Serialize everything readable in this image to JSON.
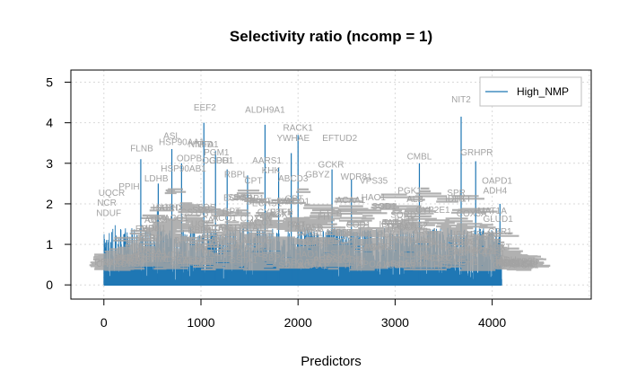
{
  "chart_data": {
    "type": "bar",
    "title": "Selectivity ratio (ncomp = 1)",
    "xlabel": "Predictors",
    "ylabel": "",
    "xlim": [
      -340,
      5020
    ],
    "ylim": [
      -0.35,
      5.3
    ],
    "xticks": [
      0,
      1000,
      2000,
      3000,
      4000
    ],
    "yticks": [
      0,
      1,
      2,
      3,
      4,
      5
    ],
    "grid": true,
    "n_predictors": 4100,
    "legend": {
      "position": "top-right",
      "entries": [
        "High_NMP"
      ]
    },
    "colors": {
      "bars": "#1f77b4",
      "labels": "#a3a3a3",
      "grid": "#d9d9d9"
    },
    "series": [
      {
        "name": "High_NMP",
        "peaks": [
          {
            "x": 380,
            "y": 3.1
          },
          {
            "x": 560,
            "y": 2.5
          },
          {
            "x": 700,
            "y": 3.35
          },
          {
            "x": 800,
            "y": 3.0
          },
          {
            "x": 1030,
            "y": 4.0
          },
          {
            "x": 1150,
            "y": 3.3
          },
          {
            "x": 1270,
            "y": 2.85
          },
          {
            "x": 1480,
            "y": 2.7
          },
          {
            "x": 1660,
            "y": 3.95
          },
          {
            "x": 1800,
            "y": 2.9
          },
          {
            "x": 1930,
            "y": 3.25
          },
          {
            "x": 2000,
            "y": 3.7
          },
          {
            "x": 2350,
            "y": 2.85
          },
          {
            "x": 2550,
            "y": 2.6
          },
          {
            "x": 3250,
            "y": 3.0
          },
          {
            "x": 3680,
            "y": 4.15
          },
          {
            "x": 3830,
            "y": 3.05
          },
          {
            "x": 4080,
            "y": 2.0
          }
        ]
      }
    ],
    "point_labels": [
      {
        "text": "EEF2",
        "x": 1040,
        "y": 4.3
      },
      {
        "text": "ALDH9A1",
        "x": 1660,
        "y": 4.25
      },
      {
        "text": "NIT2",
        "x": 3680,
        "y": 4.5
      },
      {
        "text": "RACK1",
        "x": 2000,
        "y": 3.8
      },
      {
        "text": "YWHAE",
        "x": 1950,
        "y": 3.55
      },
      {
        "text": "EFTUD2",
        "x": 2430,
        "y": 3.55
      },
      {
        "text": "ASL",
        "x": 700,
        "y": 3.6
      },
      {
        "text": "HSP90AA1",
        "x": 800,
        "y": 3.45
      },
      {
        "text": "NIFTA",
        "x": 1000,
        "y": 3.4
      },
      {
        "text": "NFD1",
        "x": 1060,
        "y": 3.4
      },
      {
        "text": "PGM1",
        "x": 1160,
        "y": 3.2
      },
      {
        "text": "GPD1",
        "x": 1210,
        "y": 3.0
      },
      {
        "text": "FLNB",
        "x": 390,
        "y": 3.3
      },
      {
        "text": "CMBL",
        "x": 3250,
        "y": 3.1
      },
      {
        "text": "GRHPR",
        "x": 3840,
        "y": 3.2
      },
      {
        "text": "AARS1",
        "x": 1680,
        "y": 3.0
      },
      {
        "text": "KHK",
        "x": 1720,
        "y": 2.75
      },
      {
        "text": "GCKR",
        "x": 2340,
        "y": 2.9
      },
      {
        "text": "WDR81",
        "x": 2600,
        "y": 2.6
      },
      {
        "text": "HSP90AB1",
        "x": 820,
        "y": 2.8
      },
      {
        "text": "LDHB",
        "x": 540,
        "y": 2.55
      },
      {
        "text": "OAPD1",
        "x": 4050,
        "y": 2.5
      },
      {
        "text": "PPIH",
        "x": 260,
        "y": 2.35
      },
      {
        "text": "NCR",
        "x": 30,
        "y": 1.95
      },
      {
        "text": "NDUF",
        "x": 50,
        "y": 1.7
      },
      {
        "text": "UQCR",
        "x": 80,
        "y": 2.2
      },
      {
        "text": "OGDH",
        "x": 1150,
        "y": 3.0
      },
      {
        "text": "ODPB",
        "x": 880,
        "y": 3.05
      },
      {
        "text": "RBPL",
        "x": 1360,
        "y": 2.65
      },
      {
        "text": "CPT",
        "x": 1540,
        "y": 2.5
      },
      {
        "text": "ABCD3",
        "x": 1950,
        "y": 2.55
      },
      {
        "text": "GBYZ",
        "x": 2200,
        "y": 2.65
      },
      {
        "text": "VPS35",
        "x": 2780,
        "y": 2.5
      },
      {
        "text": "PGK1",
        "x": 3150,
        "y": 2.25
      },
      {
        "text": "TKT",
        "x": 3700,
        "y": 2.05
      },
      {
        "text": "SPR",
        "x": 3630,
        "y": 2.2
      },
      {
        "text": "ADH4",
        "x": 4030,
        "y": 2.25
      },
      {
        "text": "MAT1A",
        "x": 4000,
        "y": 1.75
      },
      {
        "text": "GLUD1",
        "x": 4060,
        "y": 1.55
      },
      {
        "text": "CBR1",
        "x": 4080,
        "y": 1.25
      }
    ]
  }
}
